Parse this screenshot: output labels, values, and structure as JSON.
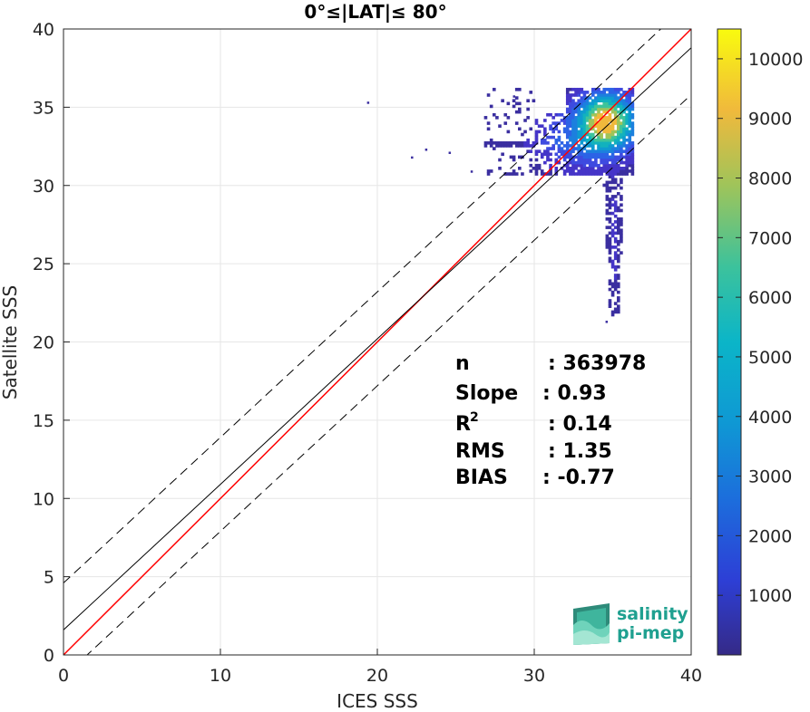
{
  "chart_data": {
    "type": "scatter",
    "subtype": "2d-density-histogram",
    "title": "0°≤|LAT|≤ 80°",
    "xlabel": "ICES SSS",
    "ylabel": "Satellite SSS",
    "xlim": [
      0,
      40
    ],
    "ylim": [
      0,
      40
    ],
    "xticks": [
      "0",
      "10",
      "20",
      "30",
      "40"
    ],
    "yticks": [
      "0",
      "5",
      "10",
      "15",
      "20",
      "25",
      "30",
      "35",
      "40"
    ],
    "grid": true,
    "colorbar": {
      "range": [
        0,
        10500
      ],
      "ticks": [
        "1000",
        "2000",
        "3000",
        "4000",
        "5000",
        "6000",
        "7000",
        "8000",
        "9000",
        "10000"
      ],
      "colormap": "parula"
    },
    "lines": [
      {
        "name": "one-to-one",
        "color": "#ff0000",
        "slope": 1.0,
        "intercept": 0
      },
      {
        "name": "fit",
        "color": "#000000",
        "slope": 0.93,
        "intercept": 1.6
      },
      {
        "name": "upper-bound",
        "color": "#000000",
        "dashed": true,
        "slope": 0.93,
        "intercept": 4.6
      },
      {
        "name": "lower-bound",
        "color": "#000000",
        "dashed": true,
        "slope": 0.93,
        "intercept": -1.4
      }
    ],
    "density_clusters": [
      {
        "x": 34.5,
        "y": 34.0,
        "sx": 1.0,
        "sy": 1.0,
        "weight": 10500
      },
      {
        "x": 33.0,
        "y": 33.0,
        "sx": 1.6,
        "sy": 1.2,
        "weight": 1500
      },
      {
        "x": 32.0,
        "y": 32.6,
        "sx": 1.4,
        "sy": 0.3,
        "weight": 600
      },
      {
        "x": 35.0,
        "y": 26.5,
        "sx": 0.2,
        "sy": 2.5,
        "weight": 300
      }
    ],
    "outliers": [
      {
        "x": 19.4,
        "y": 35.3
      },
      {
        "x": 28.7,
        "y": 35.7
      },
      {
        "x": 23.1,
        "y": 32.3
      },
      {
        "x": 22.2,
        "y": 31.8
      },
      {
        "x": 24.6,
        "y": 32.1
      },
      {
        "x": 26.0,
        "y": 30.9
      },
      {
        "x": 34.6,
        "y": 21.3
      },
      {
        "x": 34.8,
        "y": 22.3
      }
    ],
    "stats": [
      {
        "label": "n",
        "value": ": 363978"
      },
      {
        "label": "Slope",
        "value": ": 0.93"
      },
      {
        "label": "R",
        "sup": "2",
        "value": ": 0.14"
      },
      {
        "label": "RMS",
        "value": ": 1.35"
      },
      {
        "label": "BIAS",
        "value": ": -0.77"
      }
    ]
  },
  "logo": {
    "line1": "salinity",
    "line2": "pi-mep"
  }
}
